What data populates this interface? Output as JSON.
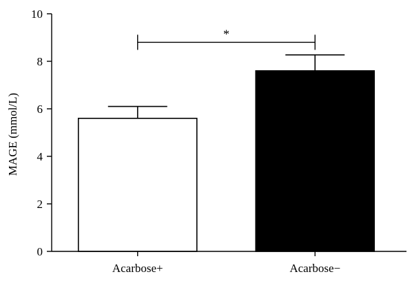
{
  "chart_data": {
    "type": "bar",
    "categories": [
      "Acarbose+",
      "Acarbose−"
    ],
    "values": [
      5.6,
      7.6
    ],
    "errors": [
      0.5,
      0.67
    ],
    "bar_colors": [
      "#ffffff",
      "#000000"
    ],
    "xlabel": "",
    "ylabel": "MAGE (mmol/L)",
    "ylim": [
      0,
      10
    ],
    "yticks": [
      0,
      2,
      4,
      6,
      8,
      10
    ],
    "grid": false,
    "legend": "none",
    "annotations": [
      {
        "type": "significance",
        "between": [
          0,
          1
        ],
        "level": 8.8,
        "text": "*"
      }
    ]
  }
}
